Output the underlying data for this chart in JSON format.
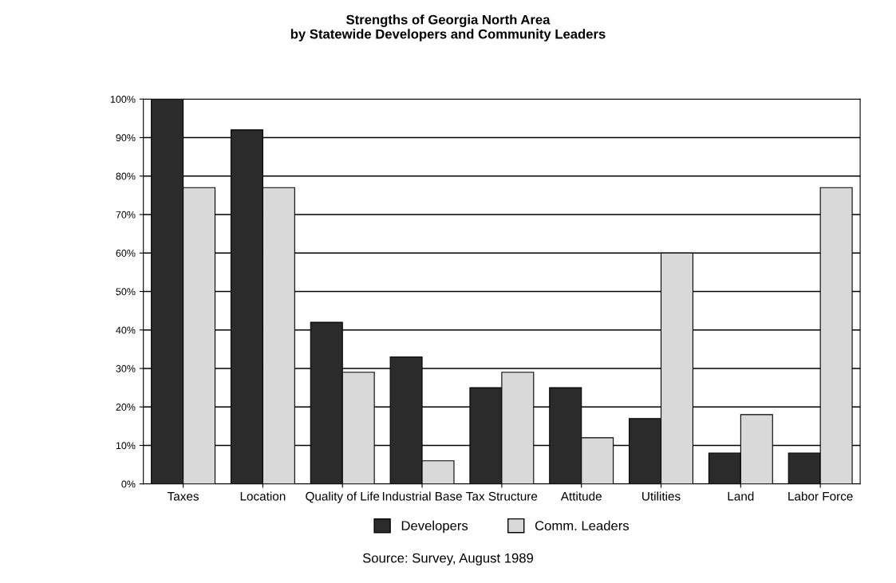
{
  "chart_data": {
    "type": "bar",
    "title": "Strengths of Georgia North Area",
    "subtitle": "by Statewide Developers and Community Leaders",
    "categories": [
      "Taxes",
      "Location",
      "Quality of Life",
      "Industrial Base",
      "Tax Structure",
      "Attitude",
      "Utilities",
      "Land",
      "Labor Force"
    ],
    "series": [
      {
        "name": "Developers",
        "color": "#2b2b2b",
        "values": [
          100,
          92,
          42,
          33,
          25,
          25,
          17,
          8,
          8
        ]
      },
      {
        "name": "Comm. Leaders",
        "color": "#d9d9d9",
        "values": [
          77,
          77,
          29,
          6,
          29,
          12,
          60,
          18,
          77
        ]
      }
    ],
    "ylim": [
      0,
      100
    ],
    "yticks": [
      {
        "value": 0,
        "label": "0%"
      },
      {
        "value": 10,
        "label": "10%"
      },
      {
        "value": 20,
        "label": "20%"
      },
      {
        "value": 30,
        "label": "30%"
      },
      {
        "value": 40,
        "label": "40%"
      },
      {
        "value": 50,
        "label": "50%"
      },
      {
        "value": 60,
        "label": "60%"
      },
      {
        "value": 70,
        "label": "70%"
      },
      {
        "value": 80,
        "label": "80%"
      },
      {
        "value": 90,
        "label": "90%"
      },
      {
        "value": 100,
        "label": "100%"
      }
    ],
    "grid": "y",
    "legend": "bottom",
    "annotations": [
      "Source: Survey, August 1989"
    ]
  }
}
